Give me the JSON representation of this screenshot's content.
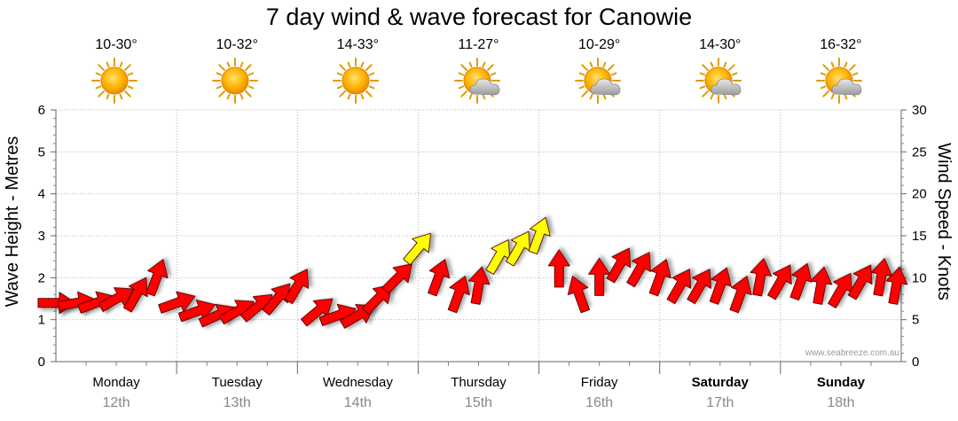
{
  "title": "7 day wind & wave forecast for Canowie",
  "watermark": "www.seabreeze.com.au",
  "weather": [
    {
      "temp": "10-30°",
      "icon": "sun-icon"
    },
    {
      "temp": "10-32°",
      "icon": "sun-icon"
    },
    {
      "temp": "14-33°",
      "icon": "sun-icon"
    },
    {
      "temp": "11-27°",
      "icon": "sun-cloud-icon"
    },
    {
      "temp": "10-29°",
      "icon": "sun-cloud-icon"
    },
    {
      "temp": "14-30°",
      "icon": "sun-cloud-icon"
    },
    {
      "temp": "16-32°",
      "icon": "sun-cloud-icon"
    }
  ],
  "colors": {
    "wind_strong": "#ff0000",
    "wind_light": "#ffff00",
    "grid": "#b0b0b0",
    "date": "#888888"
  },
  "chart_data": {
    "type": "line",
    "title": "7 day wind & wave forecast for Canowie",
    "ylabel_left": "Wave Height - Metres",
    "ylabel_right": "Wind Speed - Knots",
    "y_left_range": [
      0,
      6
    ],
    "y_left_ticks": [
      "0",
      "1",
      "2",
      "3",
      "4",
      "5",
      "6"
    ],
    "y_right_range": [
      0,
      30
    ],
    "y_right_ticks": [
      "0",
      "5",
      "10",
      "15",
      "20",
      "25",
      "30"
    ],
    "days": [
      {
        "name": "Monday",
        "date": "12th",
        "bold": false
      },
      {
        "name": "Tuesday",
        "date": "13th",
        "bold": false
      },
      {
        "name": "Wednesday",
        "date": "14th",
        "bold": false
      },
      {
        "name": "Thursday",
        "date": "15th",
        "bold": false
      },
      {
        "name": "Friday",
        "date": "16th",
        "bold": false
      },
      {
        "name": "Saturday",
        "date": "17th",
        "bold": true
      },
      {
        "name": "Sunday",
        "date": "18th",
        "bold": true
      }
    ],
    "wind_series": {
      "name": "Wind",
      "x_hours": [
        0,
        4,
        8,
        12,
        16,
        20,
        24,
        28,
        32,
        36,
        40,
        44,
        48,
        52,
        56,
        60,
        64,
        68,
        72,
        76,
        80,
        84,
        88,
        92,
        96,
        100,
        104,
        108,
        112,
        116,
        120,
        124,
        128,
        132,
        136,
        140,
        144,
        148,
        152,
        156,
        160,
        164,
        167
      ],
      "speed_knots": [
        7,
        7,
        7,
        7.5,
        8,
        10,
        7,
        6,
        5.5,
        6,
        6.5,
        7.5,
        9,
        6,
        5.5,
        5.5,
        7.5,
        10,
        13.5,
        10,
        8,
        9,
        12.5,
        13.5,
        15,
        11,
        8,
        10,
        11.5,
        11,
        10,
        9,
        9,
        9,
        8,
        10,
        9.5,
        9.5,
        9,
        8.5,
        9.5,
        10,
        9
      ],
      "direction_deg": [
        270,
        260,
        250,
        240,
        210,
        200,
        250,
        250,
        245,
        240,
        230,
        220,
        210,
        230,
        250,
        240,
        225,
        225,
        220,
        200,
        200,
        190,
        210,
        210,
        200,
        180,
        160,
        180,
        210,
        210,
        200,
        210,
        210,
        200,
        200,
        190,
        210,
        200,
        190,
        210,
        210,
        190,
        190
      ],
      "strong_threshold_knots": 12
    },
    "wave_series": {
      "name": "Wave Height (m)",
      "values": []
    }
  }
}
